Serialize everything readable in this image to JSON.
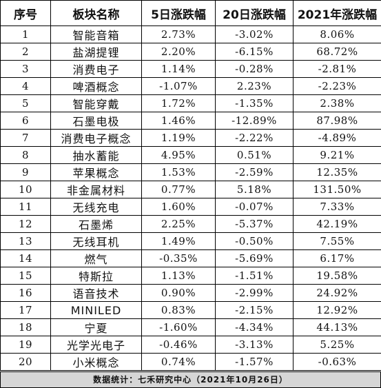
{
  "table": {
    "headers": [
      "序号",
      "板块名称",
      "5日涨跌幅",
      "20日涨跌幅",
      "2021年涨跌幅"
    ],
    "rows": [
      [
        "1",
        "智能音箱",
        "2.73%",
        "-3.02%",
        "8.06%"
      ],
      [
        "2",
        "盐湖提锂",
        "2.20%",
        "-6.15%",
        "68.72%"
      ],
      [
        "3",
        "消费电子",
        "1.14%",
        "-0.28%",
        "-2.81%"
      ],
      [
        "4",
        "啤酒概念",
        "-1.07%",
        "2.23%",
        "-2.23%"
      ],
      [
        "5",
        "智能穿戴",
        "1.72%",
        "-1.35%",
        "2.38%"
      ],
      [
        "6",
        "石墨电极",
        "1.46%",
        "-12.89%",
        "87.98%"
      ],
      [
        "7",
        "消费电子概念",
        "1.19%",
        "-2.22%",
        "-4.89%"
      ],
      [
        "8",
        "抽水蓄能",
        "4.95%",
        "0.51%",
        "9.21%"
      ],
      [
        "9",
        "苹果概念",
        "1.53%",
        "-2.59%",
        "12.35%"
      ],
      [
        "10",
        "非金属材料",
        "0.77%",
        "5.18%",
        "131.50%"
      ],
      [
        "11",
        "无线充电",
        "1.60%",
        "-0.07%",
        "7.33%"
      ],
      [
        "12",
        "石墨烯",
        "2.25%",
        "-5.37%",
        "42.19%"
      ],
      [
        "13",
        "无线耳机",
        "1.49%",
        "-0.50%",
        "7.55%"
      ],
      [
        "14",
        "燃气",
        "-0.35%",
        "-5.69%",
        "6.17%"
      ],
      [
        "15",
        "特斯拉",
        "1.13%",
        "-1.51%",
        "19.58%"
      ],
      [
        "16",
        "语音技术",
        "0.90%",
        "-2.99%",
        "24.92%"
      ],
      [
        "17",
        "MINILED",
        "0.83%",
        "-2.15%",
        "12.92%"
      ],
      [
        "18",
        "宁夏",
        "-1.60%",
        "-4.34%",
        "44.13%"
      ],
      [
        "19",
        "光学光电子",
        "-0.46%",
        "-3.13%",
        "5.25%"
      ],
      [
        "20",
        "小米概念",
        "0.74%",
        "-1.57%",
        "-0.63%"
      ]
    ]
  },
  "footer": {
    "text": "数据统计：七禾研究中心（2021年10月26日）",
    "background": "#d6d6d6"
  }
}
